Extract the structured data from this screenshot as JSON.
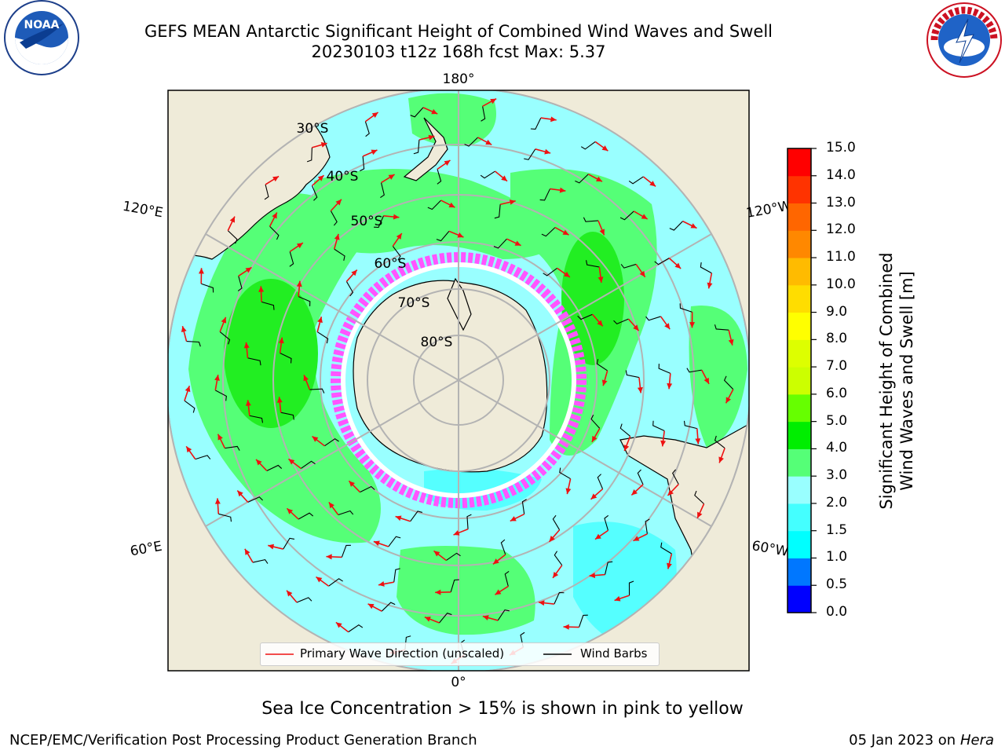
{
  "title": {
    "line1": "GEFS MEAN Antarctic Significant Height of Combined Wind Waves and Swell",
    "line2": "20230103 t12z 168h fcst   Max: 5.37"
  },
  "logos": {
    "left": "NOAA",
    "right": "NATIONAL WEATHER SERVICE"
  },
  "map": {
    "projection": "south-polar-stereographic",
    "lon_labels": [
      "180°",
      "120°E",
      "120°W",
      "60°E",
      "60°W",
      "0°"
    ],
    "lat_labels": [
      "30°S",
      "40°S",
      "50°S",
      "60°S",
      "70°S",
      "80°S"
    ],
    "colors": {
      "land": "#efebd9",
      "ocean_low": "#99ffff",
      "ocean_mid": "#55ffff",
      "ocean_high": "#55ff77",
      "ocean_peak": "#22ee22",
      "ice": "#ff55ff",
      "arrow": "#ee1111",
      "grid": "#b3b3b3"
    }
  },
  "legend": {
    "wave_direction": "Primary Wave Direction (unscaled)",
    "wind_barbs": "Wind Barbs"
  },
  "colorbar": {
    "label_line1": "Significant Height of Combined",
    "label_line2": "Wind Waves and Swell [m]",
    "ticks": [
      "0.0",
      "0.5",
      "1.0",
      "1.5",
      "2.0",
      "3.0",
      "4.0",
      "5.0",
      "6.0",
      "7.0",
      "8.0",
      "9.0",
      "10.0",
      "11.0",
      "12.0",
      "13.0",
      "14.0",
      "15.0"
    ],
    "colors": [
      "#0000ff",
      "#0077ff",
      "#00ffff",
      "#44ffff",
      "#99ffff",
      "#55ff77",
      "#00ee00",
      "#66ff00",
      "#ccff00",
      "#ddff00",
      "#ffff00",
      "#ffdd00",
      "#ffbb00",
      "#ff8800",
      "#ff6600",
      "#ff3300",
      "#ff0000"
    ]
  },
  "caption": "Sea Ice Concentration > 15% is shown in pink to yellow",
  "footer": {
    "left": "NCEP/EMC/Verification Post Processing Product Generation Branch",
    "right_prefix": "05 Jan 2023 on ",
    "right_machine": "Hera"
  }
}
